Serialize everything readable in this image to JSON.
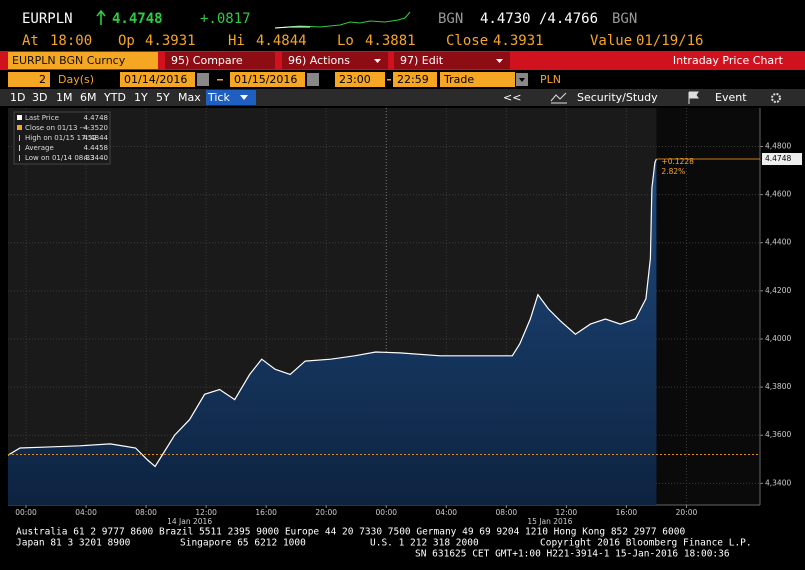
{
  "header": {
    "ticker": "EURPLN",
    "last": "4.4748",
    "change": "+.0817",
    "source": "BGN",
    "bid_ask": "4.4730 /4.4766",
    "source2": "BGN"
  },
  "quote": [
    {
      "label": "At",
      "value": "18:00"
    },
    {
      "label": "Op",
      "value": "4.3931"
    },
    {
      "label": "Hi",
      "value": "4.4844"
    },
    {
      "label": "Lo",
      "value": "4.3881"
    },
    {
      "label": "Close",
      "value": "4.3931"
    },
    {
      "label": "Value",
      "value": "01/19/16"
    }
  ],
  "toolbar": {
    "security": "EURPLN BGN Curncy",
    "buttons": [
      "95) Compare",
      "96) Actions",
      "97) Edit"
    ],
    "title": "Intraday Price Chart"
  },
  "settings": {
    "days": "2",
    "unit": "Day(s)",
    "start_date": "01/14/2016",
    "end_date": "01/15/2016",
    "start_time": "23:00",
    "end_time": "22:59",
    "field": "Trade",
    "currency": "PLN"
  },
  "tabs": [
    "1D",
    "3D",
    "1M",
    "6M",
    "YTD",
    "1Y",
    "5Y",
    "Max",
    "Tick"
  ],
  "active_tab": "Tick",
  "tools": [
    "<<",
    "Security/Study",
    "Event"
  ],
  "chart_data": {
    "type": "area",
    "color": "#ffffff",
    "legend": [
      {
        "label": "Last Price",
        "value": "4.4748"
      },
      {
        "label": "Close on 01/13 ----",
        "value": "4.3520"
      },
      {
        "label": "High on 01/15 17:52",
        "value": "4.4844"
      },
      {
        "label": "Average",
        "value": "4.4458"
      },
      {
        "label": "Low on 01/14 08:33",
        "value": "4.3440"
      }
    ],
    "x": [
      -1.2,
      -0.4,
      0.9,
      3.6,
      5.6,
      7.3,
      8.1,
      8.6,
      9.1,
      9.9,
      10.9,
      11.9,
      12.9,
      13.9,
      14.9,
      15.7,
      16.6,
      17.6,
      18.6,
      20.3,
      21.9,
      23.3,
      24.9,
      27.6,
      30.3,
      32.4,
      32.9,
      33.6,
      34.1,
      34.8,
      35.6,
      36.6,
      37.6,
      38.6,
      39.6,
      40.6,
      41.3,
      41.6,
      41.7,
      41.9,
      42.0
    ],
    "values": [
      4.3517,
      4.3547,
      4.355,
      4.3556,
      4.3564,
      4.3547,
      4.3497,
      4.347,
      4.352,
      4.36,
      4.3665,
      4.377,
      4.379,
      4.3748,
      4.3853,
      4.3916,
      4.3874,
      4.3853,
      4.3908,
      4.3916,
      4.393,
      4.3946,
      4.3942,
      4.393,
      4.393,
      4.393,
      4.398,
      4.4083,
      4.4184,
      4.4125,
      4.4075,
      4.402,
      4.4062,
      4.4083,
      4.4062,
      4.4083,
      4.4167,
      4.4335,
      4.4628,
      4.4733,
      4.4748
    ],
    "close_line": 4.352,
    "last_label": "4.4748",
    "annotations": [
      "+0.1228",
      "2.82%"
    ],
    "xlim": [
      -1.2,
      48.9
    ],
    "xticks": [
      {
        "value": 0,
        "label": "00:00"
      },
      {
        "value": 4,
        "label": "04:00"
      },
      {
        "value": 8,
        "label": "08:00"
      },
      {
        "value": 12,
        "label": "12:00"
      },
      {
        "value": 16,
        "label": "16:00"
      },
      {
        "value": 20,
        "label": "20:00"
      },
      {
        "value": 24,
        "label": "00:00"
      },
      {
        "value": 28,
        "label": "04:00"
      },
      {
        "value": 32,
        "label": "08:00"
      },
      {
        "value": 36,
        "label": "12:00"
      },
      {
        "value": 40,
        "label": "16:00"
      },
      {
        "value": 44,
        "label": "20:00"
      }
    ],
    "dates": [
      {
        "value": 10.9,
        "label": "14 Jan 2016"
      },
      {
        "value": 34.9,
        "label": "15 Jan 2016"
      }
    ],
    "ylim": [
      4.331,
      4.496
    ],
    "yticks": [
      {
        "value": 4.34,
        "label": "4,3400"
      },
      {
        "value": 4.36,
        "label": "4,3600"
      },
      {
        "value": 4.38,
        "label": "4,3800"
      },
      {
        "value": 4.4,
        "label": "4,4000"
      },
      {
        "value": 4.42,
        "label": "4,4200"
      },
      {
        "value": 4.44,
        "label": "4,4400"
      },
      {
        "value": 4.46,
        "label": "4,4600"
      },
      {
        "value": 4.48,
        "label": "4,4800"
      }
    ],
    "grid": true
  },
  "footer": [
    [
      "Australia 61 2 9777 8600 Brazil 5511 2395 9000 Europe 44 20 7330 7500 Germany 49 69 9204 1210 Hong Kong 852 2977 6000"
    ],
    [
      "Japan 81 3 3201 8900",
      "Singapore 65 6212 1000",
      "U.S. 1 212 318 2000",
      "Copyright 2016 Bloomberg Finance L.P."
    ],
    [
      "SN 631625 CET  GMT+1:00 H221-3914-1 15-Jan-2016 18:00:36"
    ]
  ]
}
